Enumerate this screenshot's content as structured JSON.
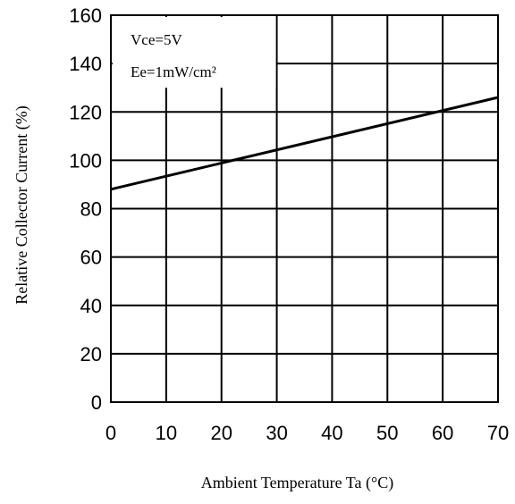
{
  "chart_data": {
    "type": "line",
    "title": "",
    "xlabel": "Ambient Temperature Ta (°C)",
    "ylabel": "Relative Collector Current (%)",
    "xlim": [
      0,
      70
    ],
    "ylim": [
      0,
      160
    ],
    "x_ticks": [
      "0",
      "10",
      "20",
      "30",
      "40",
      "50",
      "60",
      "70"
    ],
    "y_ticks": [
      "0",
      "20",
      "40",
      "60",
      "80",
      "100",
      "120",
      "140",
      "160"
    ],
    "grid": true,
    "annotations": [
      "Vce=5V",
      "Ee=1mW/cm²"
    ],
    "series": [
      {
        "x": [
          0,
          70
        ],
        "y": [
          88,
          126
        ]
      }
    ],
    "line_color": "#000000",
    "grid_color": "#000000"
  }
}
